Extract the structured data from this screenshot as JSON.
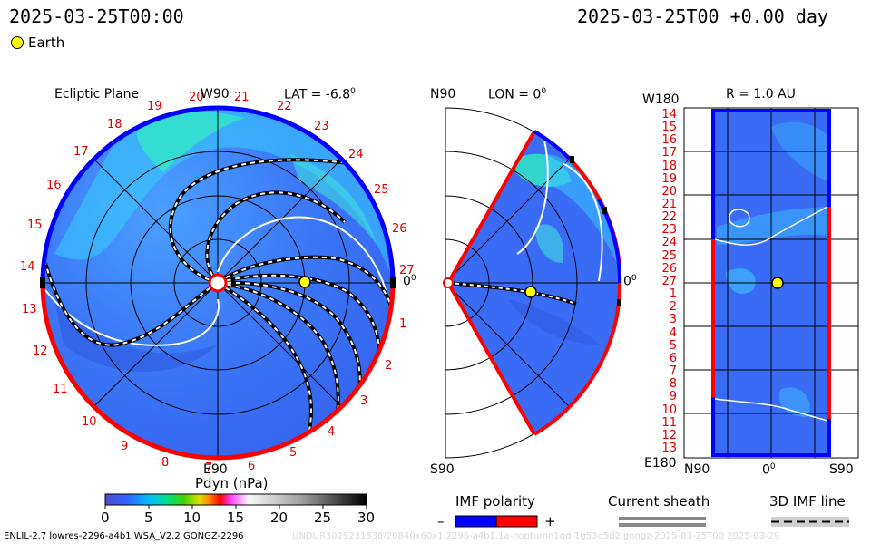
{
  "header": {
    "left_time": "2025-03-25T00:00",
    "right_time": "2025-03-25T00 +0.00 day",
    "earth_legend": "Earth"
  },
  "panel_ecliptic": {
    "title": "Ecliptic Plane",
    "top_label": "W90",
    "lat_label": "LAT = -6.8",
    "degree_sign": "0",
    "bottom_label": "E90",
    "right_label": "0",
    "numbers": [
      "19",
      "20",
      "21",
      "22",
      "23",
      "24",
      "25",
      "26",
      "27",
      "1",
      "2",
      "3",
      "4",
      "5",
      "6",
      "7",
      "8",
      "9",
      "10",
      "11",
      "12",
      "13",
      "14",
      "15",
      "16",
      "17",
      "18"
    ]
  },
  "panel_meridional": {
    "top_label": "N90",
    "lon_label": "LON = 0",
    "degree_sign": "0",
    "bottom_label": "S90",
    "right_label": "0"
  },
  "panel_synoptic": {
    "top_left_label": "W180",
    "r_label": "R = 1.0 AU",
    "bottom_left_label": "E180",
    "bottom_n": "N90",
    "bottom_zero": "0",
    "bottom_s": "S90",
    "rows": [
      "14",
      "15",
      "16",
      "17",
      "18",
      "19",
      "20",
      "21",
      "22",
      "23",
      "24",
      "25",
      "26",
      "27",
      "1",
      "2",
      "3",
      "4",
      "5",
      "6",
      "7",
      "8",
      "9",
      "10",
      "11",
      "12",
      "13"
    ]
  },
  "colorbar": {
    "title": "Pdyn (nPa)",
    "ticks": [
      "0",
      "5",
      "10",
      "15",
      "20",
      "25",
      "30"
    ]
  },
  "legend": {
    "imf_title": "IMF polarity",
    "minus": "–",
    "plus": "+",
    "sheath_title": "Current sheath",
    "imf3d_title": "3D IMF line"
  },
  "footer": {
    "left": "ENLIL-2.7 lowres-2296-a4b1 WSA_V2.2 GONGZ-2296",
    "right": "UNDUR3029231336/20840x60x1.2296-a4b1.1a-noptumn1qd-1g53q5d2.gongz-2025-03-25T00 2025-03-29"
  },
  "colors": {
    "background_blue": "#3a6bf5",
    "positive_polarity": "#ff0000",
    "negative_polarity": "#0000ff",
    "earth": "#ffff00"
  }
}
